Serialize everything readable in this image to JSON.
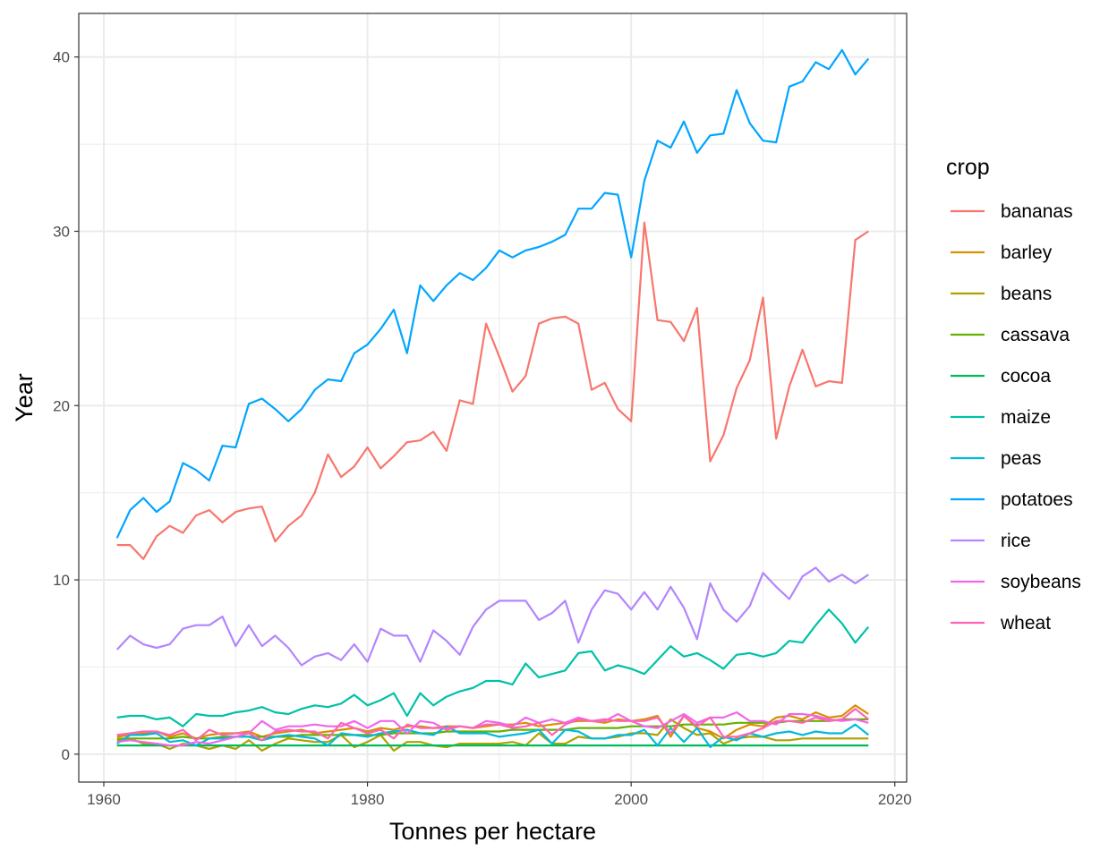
{
  "chart_data": {
    "type": "line",
    "xlabel": "Tonnes per hectare",
    "ylabel": "Year",
    "xlim": [
      1958.1,
      2020.9
    ],
    "ylim": [
      -1.6,
      42.5
    ],
    "x_ticks": [
      1960,
      1980,
      2000,
      2020
    ],
    "y_ticks": [
      0,
      10,
      20,
      30,
      40
    ],
    "grid": true,
    "legend": {
      "title": "crop",
      "position": "right"
    },
    "x": [
      1961,
      1962,
      1963,
      1964,
      1965,
      1966,
      1967,
      1968,
      1969,
      1970,
      1971,
      1972,
      1973,
      1974,
      1975,
      1976,
      1977,
      1978,
      1979,
      1980,
      1981,
      1982,
      1983,
      1984,
      1985,
      1986,
      1987,
      1988,
      1989,
      1990,
      1991,
      1992,
      1993,
      1994,
      1995,
      1996,
      1997,
      1998,
      1999,
      2000,
      2001,
      2002,
      2003,
      2004,
      2005,
      2006,
      2007,
      2008,
      2009,
      2010,
      2011,
      2012,
      2013,
      2014,
      2015,
      2016,
      2017,
      2018
    ],
    "series": [
      {
        "name": "bananas",
        "color": "#F8766D",
        "values": [
          12.0,
          12.0,
          11.2,
          12.5,
          13.1,
          12.7,
          13.7,
          14.0,
          13.3,
          13.9,
          14.1,
          14.2,
          12.2,
          13.1,
          13.7,
          15.0,
          17.2,
          15.9,
          16.5,
          17.6,
          16.4,
          17.1,
          17.9,
          18.0,
          18.5,
          17.4,
          20.3,
          20.1,
          24.7,
          22.8,
          20.8,
          21.7,
          24.7,
          25.0,
          25.1,
          24.7,
          20.9,
          21.3,
          19.8,
          19.1,
          30.5,
          24.9,
          24.8,
          23.7,
          25.6,
          16.8,
          18.3,
          21.0,
          22.6,
          26.2,
          18.1,
          21.1,
          23.2,
          21.1,
          21.4,
          21.3,
          29.5,
          30.0
        ]
      },
      {
        "name": "barley",
        "color": "#DB8E00",
        "values": [
          1.0,
          1.1,
          1.2,
          1.3,
          1.0,
          1.2,
          0.9,
          1.1,
          1.2,
          1.2,
          1.3,
          1.0,
          1.2,
          1.3,
          1.4,
          1.2,
          1.3,
          1.4,
          1.5,
          1.3,
          1.5,
          1.4,
          1.6,
          1.6,
          1.5,
          1.6,
          1.6,
          1.5,
          1.6,
          1.7,
          1.7,
          1.8,
          1.6,
          1.7,
          1.8,
          1.9,
          1.9,
          1.8,
          2.0,
          1.9,
          2.0,
          2.2,
          1.0,
          2.2,
          1.5,
          1.3,
          0.9,
          1.4,
          1.7,
          1.6,
          2.1,
          2.2,
          2.0,
          2.4,
          2.1,
          2.2,
          2.8,
          2.3
        ]
      },
      {
        "name": "beans",
        "color": "#AEA200",
        "values": [
          0.9,
          0.9,
          0.6,
          0.6,
          0.3,
          0.6,
          0.5,
          0.3,
          0.5,
          0.3,
          0.8,
          0.2,
          0.6,
          0.9,
          0.8,
          0.7,
          0.7,
          1.1,
          0.4,
          0.7,
          1.1,
          0.2,
          0.7,
          0.7,
          0.5,
          0.4,
          0.6,
          0.6,
          0.6,
          0.6,
          0.7,
          0.5,
          1.2,
          0.6,
          0.6,
          1.0,
          0.9,
          0.9,
          1.0,
          1.2,
          1.2,
          1.1,
          2.0,
          1.5,
          1.1,
          1.2,
          0.6,
          0.9,
          1.0,
          1.0,
          0.8,
          0.8,
          0.9,
          0.9,
          0.9,
          0.9,
          0.9,
          0.9
        ]
      },
      {
        "name": "cassava",
        "color": "#64B200",
        "values": [
          0.8,
          0.9,
          0.9,
          0.9,
          0.9,
          1.0,
          0.9,
          0.9,
          1.0,
          1.0,
          1.0,
          1.0,
          1.0,
          1.0,
          1.1,
          1.1,
          1.1,
          1.1,
          1.1,
          1.1,
          1.1,
          1.2,
          1.2,
          1.2,
          1.2,
          1.3,
          1.3,
          1.3,
          1.3,
          1.3,
          1.4,
          1.4,
          1.4,
          1.4,
          1.4,
          1.5,
          1.5,
          1.5,
          1.5,
          1.6,
          1.6,
          1.6,
          1.6,
          1.7,
          1.7,
          1.7,
          1.7,
          1.8,
          1.8,
          1.8,
          1.8,
          1.9,
          1.9,
          1.9,
          1.9,
          2.0,
          2.0,
          2.0
        ]
      },
      {
        "name": "cocoa",
        "color": "#00BD5C",
        "values": [
          0.5,
          0.5,
          0.5,
          0.5,
          0.5,
          0.5,
          0.5,
          0.5,
          0.5,
          0.5,
          0.5,
          0.5,
          0.5,
          0.5,
          0.5,
          0.5,
          0.5,
          0.5,
          0.5,
          0.5,
          0.5,
          0.5,
          0.5,
          0.5,
          0.5,
          0.5,
          0.5,
          0.5,
          0.5,
          0.5,
          0.5,
          0.5,
          0.5,
          0.5,
          0.5,
          0.5,
          0.5,
          0.5,
          0.5,
          0.5,
          0.5,
          0.5,
          0.5,
          0.5,
          0.5,
          0.5,
          0.5,
          0.5,
          0.5,
          0.5,
          0.5,
          0.5,
          0.5,
          0.5,
          0.5,
          0.5,
          0.5,
          0.5
        ]
      },
      {
        "name": "maize",
        "color": "#00C1A7",
        "values": [
          2.1,
          2.2,
          2.2,
          2.0,
          2.1,
          1.6,
          2.3,
          2.2,
          2.2,
          2.4,
          2.5,
          2.7,
          2.4,
          2.3,
          2.6,
          2.8,
          2.7,
          2.9,
          3.4,
          2.8,
          3.1,
          3.5,
          2.2,
          3.5,
          2.8,
          3.3,
          3.6,
          3.8,
          4.2,
          4.2,
          4.0,
          5.2,
          4.4,
          4.6,
          4.8,
          5.8,
          5.9,
          4.8,
          5.1,
          4.9,
          4.6,
          5.4,
          6.2,
          5.6,
          5.8,
          5.4,
          4.9,
          5.7,
          5.8,
          5.6,
          5.8,
          6.5,
          6.4,
          7.4,
          8.3,
          7.5,
          6.4,
          7.3
        ]
      },
      {
        "name": "peas",
        "color": "#00BADE",
        "values": [
          0.6,
          1.1,
          1.1,
          1.2,
          0.7,
          0.8,
          0.5,
          0.9,
          0.9,
          1.0,
          1.0,
          0.8,
          1.0,
          1.1,
          1.0,
          0.9,
          0.5,
          1.2,
          1.1,
          1.0,
          1.2,
          1.3,
          1.4,
          1.2,
          1.1,
          1.6,
          1.2,
          1.2,
          1.2,
          1.0,
          1.1,
          1.2,
          1.4,
          0.6,
          1.4,
          1.3,
          0.9,
          0.9,
          1.1,
          1.1,
          1.4,
          0.5,
          1.5,
          0.7,
          1.5,
          0.4,
          1.0,
          0.8,
          1.2,
          1.0,
          1.2,
          1.3,
          1.1,
          1.3,
          1.2,
          1.2,
          1.7,
          1.1
        ]
      },
      {
        "name": "potatoes",
        "color": "#00A6FF",
        "values": [
          12.4,
          14.0,
          14.7,
          13.9,
          14.5,
          16.7,
          16.3,
          15.7,
          17.7,
          17.6,
          20.1,
          20.4,
          19.8,
          19.1,
          19.8,
          20.9,
          21.5,
          21.4,
          23.0,
          23.5,
          24.4,
          25.5,
          23.0,
          26.9,
          26.0,
          26.9,
          27.6,
          27.2,
          27.9,
          28.9,
          28.5,
          28.9,
          29.1,
          29.4,
          29.8,
          31.3,
          31.3,
          32.2,
          32.1,
          28.5,
          32.9,
          35.2,
          34.8,
          36.3,
          34.5,
          35.5,
          35.6,
          38.1,
          36.2,
          35.2,
          35.1,
          38.3,
          38.6,
          39.7,
          39.3,
          40.4,
          39.0,
          39.9
        ]
      },
      {
        "name": "rice",
        "color": "#B385FF",
        "values": [
          6.0,
          6.8,
          6.3,
          6.1,
          6.3,
          7.2,
          7.4,
          7.4,
          7.9,
          6.2,
          7.4,
          6.2,
          6.8,
          6.1,
          5.1,
          5.6,
          5.8,
          5.4,
          6.3,
          5.3,
          7.2,
          6.8,
          6.8,
          5.3,
          7.1,
          6.5,
          5.7,
          7.3,
          8.3,
          8.8,
          8.8,
          8.8,
          7.7,
          8.1,
          8.8,
          6.4,
          8.3,
          9.4,
          9.2,
          8.3,
          9.3,
          8.3,
          9.6,
          8.4,
          6.6,
          9.8,
          8.3,
          7.6,
          8.5,
          10.4,
          9.6,
          8.9,
          10.2,
          10.7,
          9.9,
          10.3,
          9.8,
          10.3
        ]
      },
      {
        "name": "soybeans",
        "color": "#EF67EB",
        "values": [
          0.7,
          0.8,
          0.7,
          0.6,
          0.5,
          0.5,
          0.7,
          0.6,
          0.8,
          1.0,
          1.2,
          1.9,
          1.4,
          1.6,
          1.6,
          1.7,
          1.6,
          1.6,
          1.9,
          1.5,
          1.9,
          1.9,
          1.2,
          1.9,
          1.8,
          1.4,
          1.6,
          1.5,
          1.9,
          1.8,
          1.6,
          2.1,
          1.8,
          2.0,
          1.8,
          2.1,
          1.9,
          1.9,
          2.3,
          1.9,
          1.6,
          1.5,
          1.9,
          2.3,
          1.8,
          2.1,
          2.1,
          2.4,
          1.9,
          1.9,
          1.7,
          2.3,
          2.3,
          2.2,
          2.0,
          1.9,
          2.0,
          1.8
        ]
      },
      {
        "name": "wheat",
        "color": "#FF63B6",
        "values": [
          1.1,
          1.2,
          1.3,
          1.3,
          1.1,
          1.4,
          0.8,
          1.4,
          1.1,
          1.2,
          1.2,
          0.8,
          1.3,
          1.4,
          1.3,
          1.3,
          0.9,
          1.8,
          1.5,
          1.2,
          1.4,
          0.9,
          1.7,
          1.5,
          1.5,
          1.5,
          1.6,
          1.5,
          1.7,
          1.7,
          1.5,
          1.6,
          1.8,
          1.1,
          1.7,
          2.0,
          1.9,
          2.0,
          1.9,
          1.9,
          1.9,
          2.1,
          1.2,
          2.2,
          1.6,
          2.1,
          1.0,
          1.0,
          1.2,
          1.5,
          1.9,
          1.9,
          1.8,
          2.1,
          1.9,
          2.0,
          2.6,
          2.0
        ]
      }
    ]
  }
}
